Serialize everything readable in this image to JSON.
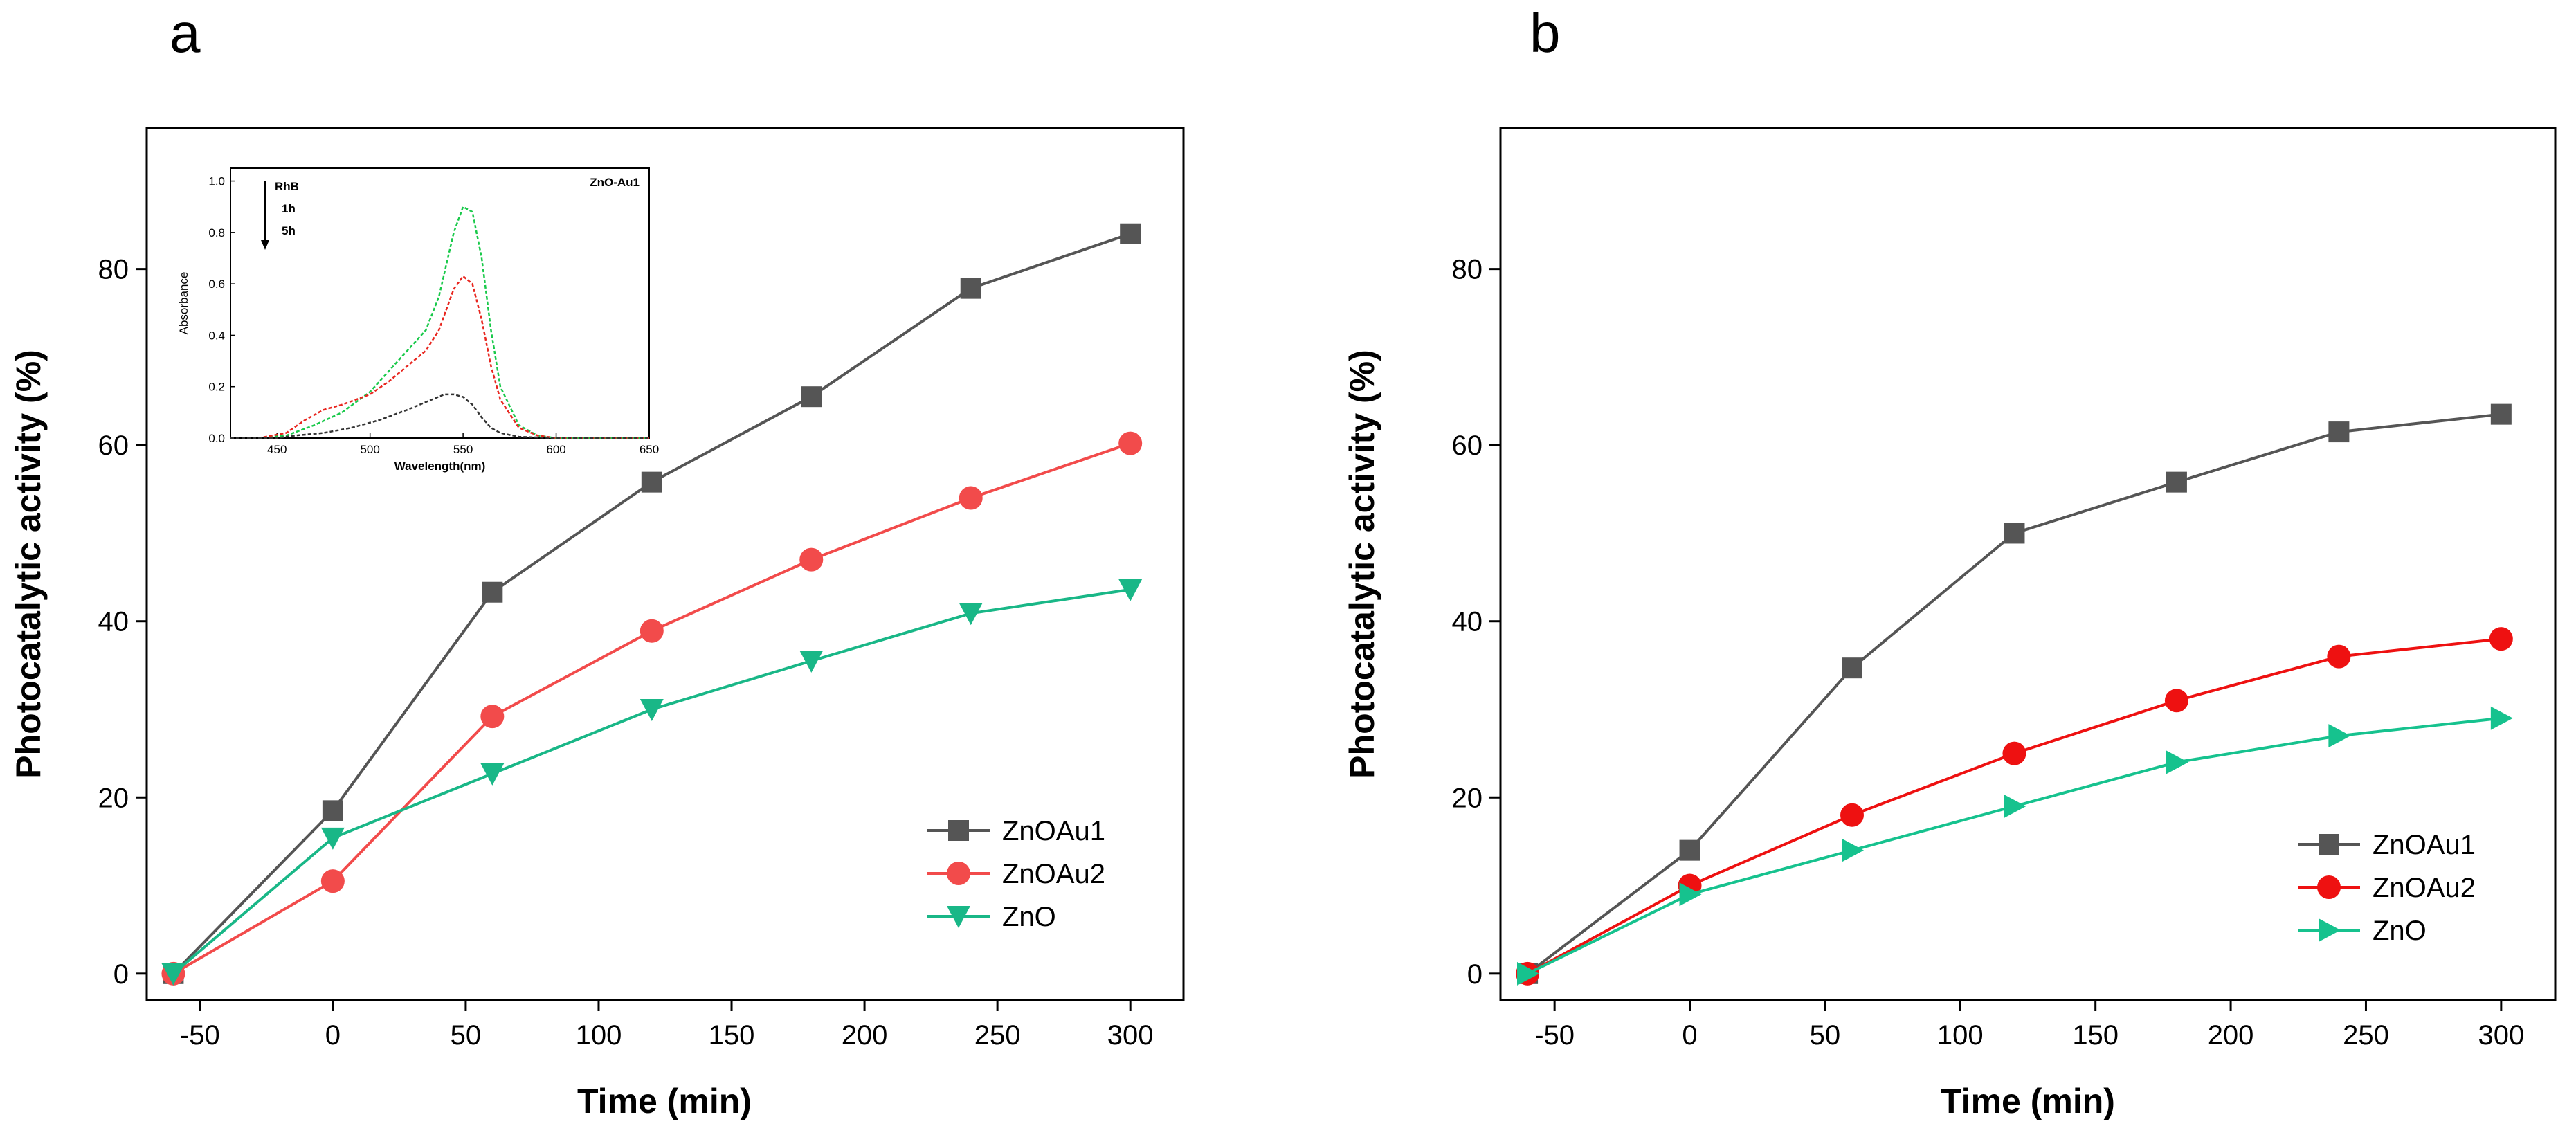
{
  "chart_data": [
    {
      "type": "line",
      "panel_label": "a",
      "xlabel": "Time (min)",
      "ylabel": "Photocatalytic activity (%)",
      "xlim": [
        -70,
        320
      ],
      "ylim": [
        -3,
        96
      ],
      "xticks": [
        -50,
        0,
        50,
        100,
        150,
        200,
        250,
        300
      ],
      "yticks": [
        0,
        20,
        40,
        60,
        80
      ],
      "legend_position": "bottom-right",
      "series": [
        {
          "name": "ZnOAu1",
          "color": "#555555",
          "marker": "square",
          "x": [
            -60,
            0,
            60,
            120,
            180,
            240,
            300
          ],
          "y": [
            0,
            18.5,
            43.3,
            55.8,
            65.5,
            77.8,
            84
          ]
        },
        {
          "name": "ZnOAu2",
          "color": "#f24b4b",
          "marker": "circle",
          "x": [
            -60,
            0,
            60,
            120,
            180,
            240,
            300
          ],
          "y": [
            0,
            10.5,
            29.2,
            38.9,
            47,
            54,
            60.2
          ]
        },
        {
          "name": "ZnO",
          "color": "#19b787",
          "marker": "triangle-down",
          "x": [
            -60,
            0,
            60,
            120,
            180,
            240,
            300
          ],
          "y": [
            0,
            15.4,
            22.7,
            30,
            35.5,
            40.9,
            43.6
          ]
        }
      ],
      "inset": {
        "type": "line",
        "title": "ZnO-Au1",
        "xlabel": "Wavelength(nm)",
        "ylabel": "Absorbance",
        "xlim": [
          425,
          650
        ],
        "ylim": [
          0,
          1.05
        ],
        "xticks": [
          450,
          500,
          550,
          600,
          650
        ],
        "yticks": [
          0.0,
          0.2,
          0.4,
          0.6,
          0.8,
          1.0
        ],
        "annotation": [
          "RhB",
          "1h",
          "5h"
        ],
        "series": [
          {
            "name": "RhB",
            "color": "#19c94a",
            "dashed": true,
            "x": [
              425,
              440,
              455,
              470,
              485,
              500,
              510,
              520,
              530,
              537,
              545,
              550,
              555,
              560,
              565,
              570,
              580,
              590,
              600,
              620,
              650
            ],
            "y": [
              0,
              0,
              0.01,
              0.05,
              0.1,
              0.18,
              0.26,
              0.34,
              0.42,
              0.55,
              0.8,
              0.9,
              0.88,
              0.7,
              0.42,
              0.2,
              0.05,
              0.01,
              0,
              0,
              0
            ]
          },
          {
            "name": "1h",
            "color": "#e8261f",
            "dashed": true,
            "x": [
              425,
              440,
              455,
              465,
              475,
              485,
              500,
              510,
              520,
              530,
              537,
              545,
              550,
              555,
              560,
              565,
              570,
              580,
              590,
              600,
              620,
              650
            ],
            "y": [
              0,
              0,
              0.02,
              0.07,
              0.11,
              0.13,
              0.17,
              0.22,
              0.28,
              0.34,
              0.42,
              0.58,
              0.63,
              0.6,
              0.46,
              0.28,
              0.15,
              0.04,
              0.01,
              0,
              0,
              0
            ]
          },
          {
            "name": "5h",
            "color": "#333333",
            "dashed": true,
            "x": [
              425,
              450,
              460,
              475,
              490,
              505,
              520,
              530,
              540,
              545,
              550,
              555,
              560,
              565,
              570,
              580,
              600,
              650
            ],
            "y": [
              0,
              0,
              0.01,
              0.02,
              0.04,
              0.07,
              0.11,
              0.14,
              0.17,
              0.17,
              0.16,
              0.13,
              0.08,
              0.04,
              0.02,
              0.005,
              0,
              0
            ]
          }
        ]
      }
    },
    {
      "type": "line",
      "panel_label": "b",
      "xlabel": "Time (min)",
      "ylabel": "Photocatalytic activity (%)",
      "xlim": [
        -70,
        320
      ],
      "ylim": [
        -3,
        96
      ],
      "xticks": [
        -50,
        0,
        50,
        100,
        150,
        200,
        250,
        300
      ],
      "yticks": [
        0,
        20,
        40,
        60,
        80
      ],
      "legend_position": "bottom-right",
      "series": [
        {
          "name": "ZnOAu1",
          "color": "#555555",
          "marker": "square",
          "x": [
            -60,
            0,
            60,
            120,
            180,
            240,
            300
          ],
          "y": [
            0,
            14,
            34.7,
            50,
            55.8,
            61.5,
            63.5
          ]
        },
        {
          "name": "ZnOAu2",
          "color": "#ee1111",
          "marker": "circle",
          "x": [
            -60,
            0,
            60,
            120,
            180,
            240,
            300
          ],
          "y": [
            0,
            10,
            18,
            25,
            31,
            36,
            38
          ]
        },
        {
          "name": "ZnO",
          "color": "#16c28e",
          "marker": "triangle-right",
          "x": [
            -60,
            0,
            60,
            120,
            180,
            240,
            300
          ],
          "y": [
            0,
            9,
            14,
            19,
            24,
            27,
            29
          ]
        }
      ]
    }
  ]
}
